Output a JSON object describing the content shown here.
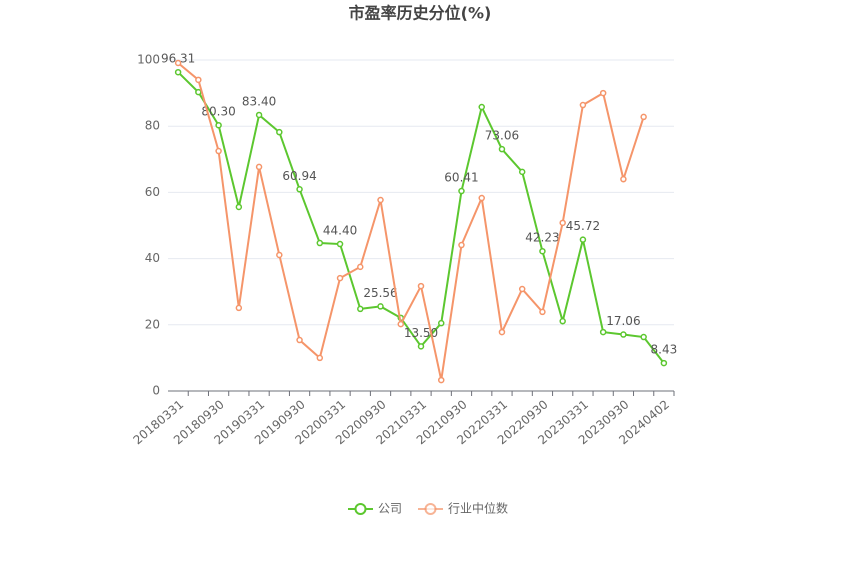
{
  "chart_data": {
    "type": "line",
    "title": "市盈率历史分位(%)",
    "categories": [
      "20180331",
      null,
      "20180930",
      null,
      "20190331",
      null,
      "20190930",
      null,
      "20200331",
      null,
      "20200930",
      null,
      "20210331",
      null,
      "20210930",
      null,
      "20220331",
      null,
      "20220930",
      null,
      "20230331",
      null,
      "20230930",
      null,
      "20240402"
    ],
    "series": [
      {
        "name": "公司",
        "color": "#5cc72f",
        "values": [
          96.31,
          90.3,
          80.3,
          55.6,
          83.4,
          78.2,
          60.94,
          44.7,
          44.4,
          24.8,
          25.56,
          22.1,
          13.5,
          20.5,
          60.41,
          85.8,
          73.06,
          66.2,
          42.23,
          21.1,
          45.72,
          17.8,
          17.06,
          16.3,
          8.43
        ],
        "value_labels": [
          "96.31",
          null,
          "80.30",
          null,
          "83.40",
          null,
          "60.94",
          null,
          "44.40",
          null,
          "25.56",
          null,
          "13.50",
          null,
          "60.41",
          null,
          "73.06",
          null,
          "42.23",
          null,
          "45.72",
          null,
          "17.06",
          null,
          "8.43"
        ]
      },
      {
        "name": "行业中位数",
        "color": "#f5956a",
        "values": [
          99.1,
          94.0,
          72.5,
          25.1,
          67.7,
          41.1,
          15.4,
          10.0,
          34.1,
          37.5,
          57.7,
          20.2,
          31.7,
          3.3,
          44.1,
          58.3,
          17.8,
          30.8,
          23.9,
          50.8,
          86.4,
          90.0,
          64.0,
          82.8,
          null
        ]
      }
    ],
    "ylim": [
      0,
      100
    ],
    "yticks": [
      0,
      20,
      40,
      60,
      80,
      100
    ],
    "grid": true,
    "legend": "bottom"
  }
}
